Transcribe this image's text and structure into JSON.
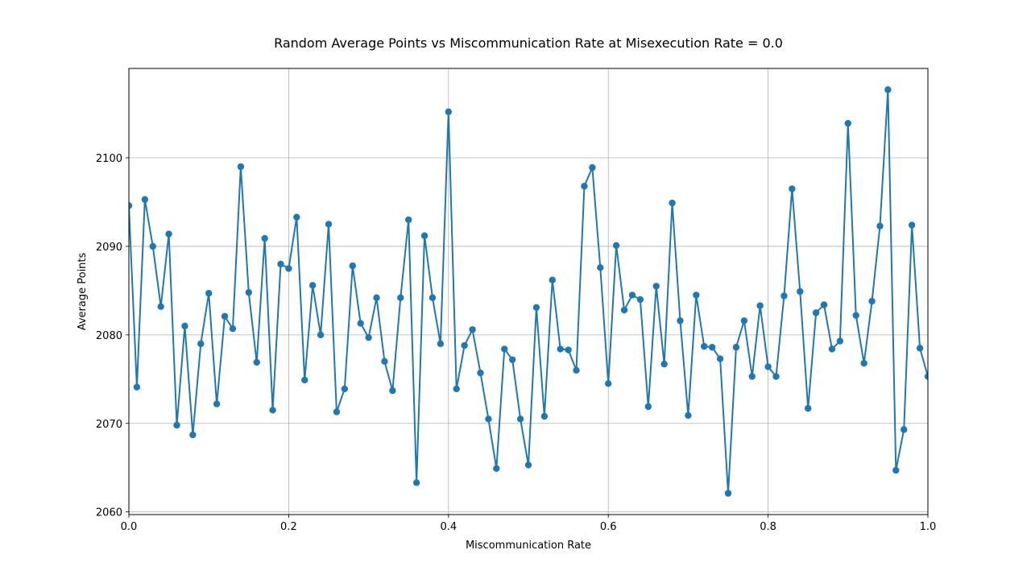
{
  "chart_data": {
    "type": "line",
    "title": "Random Average Points vs Miscommunication Rate at Misexecution Rate = 0.0",
    "xlabel": "Miscommunication Rate",
    "ylabel": "Average Points",
    "xlim": [
      0.0,
      1.0
    ],
    "ylim": [
      2059.7,
      2110.1
    ],
    "xticks": [
      0.0,
      0.2,
      0.4,
      0.6,
      0.8,
      1.0
    ],
    "xtick_labels": [
      "0.0",
      "0.2",
      "0.4",
      "0.6",
      "0.8",
      "1.0"
    ],
    "yticks": [
      2060,
      2070,
      2080,
      2090,
      2100
    ],
    "ytick_labels": [
      "2060",
      "2070",
      "2080",
      "2090",
      "2100"
    ],
    "grid": true,
    "color": "#1f77b4",
    "markers": true,
    "x": [
      0.0,
      0.01,
      0.02,
      0.03,
      0.04,
      0.05,
      0.06,
      0.07,
      0.08,
      0.09,
      0.1,
      0.11,
      0.12,
      0.13,
      0.14,
      0.15,
      0.16,
      0.17,
      0.18,
      0.19,
      0.2,
      0.21,
      0.22,
      0.23,
      0.24,
      0.25,
      0.26,
      0.27,
      0.28,
      0.29,
      0.3,
      0.31,
      0.32,
      0.33,
      0.34,
      0.35,
      0.36,
      0.37,
      0.38,
      0.39,
      0.4,
      0.41,
      0.42,
      0.43,
      0.44,
      0.45,
      0.46,
      0.47,
      0.48,
      0.49,
      0.5,
      0.51,
      0.52,
      0.53,
      0.54,
      0.55,
      0.56,
      0.57,
      0.58,
      0.59,
      0.6,
      0.61,
      0.62,
      0.63,
      0.64,
      0.65,
      0.66,
      0.67,
      0.68,
      0.69,
      0.7,
      0.71,
      0.72,
      0.73,
      0.74,
      0.75,
      0.76,
      0.77,
      0.78,
      0.79,
      0.8,
      0.81,
      0.82,
      0.83,
      0.84,
      0.85,
      0.86,
      0.87,
      0.88,
      0.89,
      0.9,
      0.91,
      0.92,
      0.93,
      0.94,
      0.95,
      0.96,
      0.97,
      0.98,
      0.99,
      1.0
    ],
    "values": [
      2094.6,
      2074.1,
      2095.3,
      2090.0,
      2083.2,
      2091.4,
      2069.8,
      2081.0,
      2068.7,
      2079.0,
      2084.7,
      2072.2,
      2082.1,
      2080.7,
      2099.0,
      2084.8,
      2076.9,
      2090.9,
      2071.5,
      2088.0,
      2087.5,
      2093.3,
      2074.9,
      2085.6,
      2080.0,
      2092.5,
      2071.3,
      2073.9,
      2087.8,
      2081.3,
      2079.7,
      2084.2,
      2077.0,
      2073.7,
      2084.2,
      2093.0,
      2063.3,
      2091.2,
      2084.2,
      2079.0,
      2105.2,
      2073.9,
      2078.8,
      2080.6,
      2075.7,
      2070.5,
      2064.9,
      2078.4,
      2077.2,
      2070.5,
      2065.3,
      2083.1,
      2070.8,
      2086.2,
      2078.4,
      2078.3,
      2076.0,
      2096.8,
      2098.9,
      2087.6,
      2074.5,
      2090.1,
      2082.8,
      2084.5,
      2084.0,
      2071.9,
      2085.5,
      2076.7,
      2094.9,
      2081.6,
      2070.9,
      2084.5,
      2078.7,
      2078.6,
      2077.3,
      2062.1,
      2078.6,
      2081.6,
      2075.3,
      2083.3,
      2076.4,
      2075.3,
      2084.4,
      2096.5,
      2084.9,
      2071.7,
      2082.5,
      2083.4,
      2078.4,
      2079.3,
      2103.9,
      2082.2,
      2076.8,
      2083.8,
      2092.3,
      2107.7,
      2064.7,
      2069.3,
      2092.4,
      2078.5,
      2075.3
    ]
  }
}
